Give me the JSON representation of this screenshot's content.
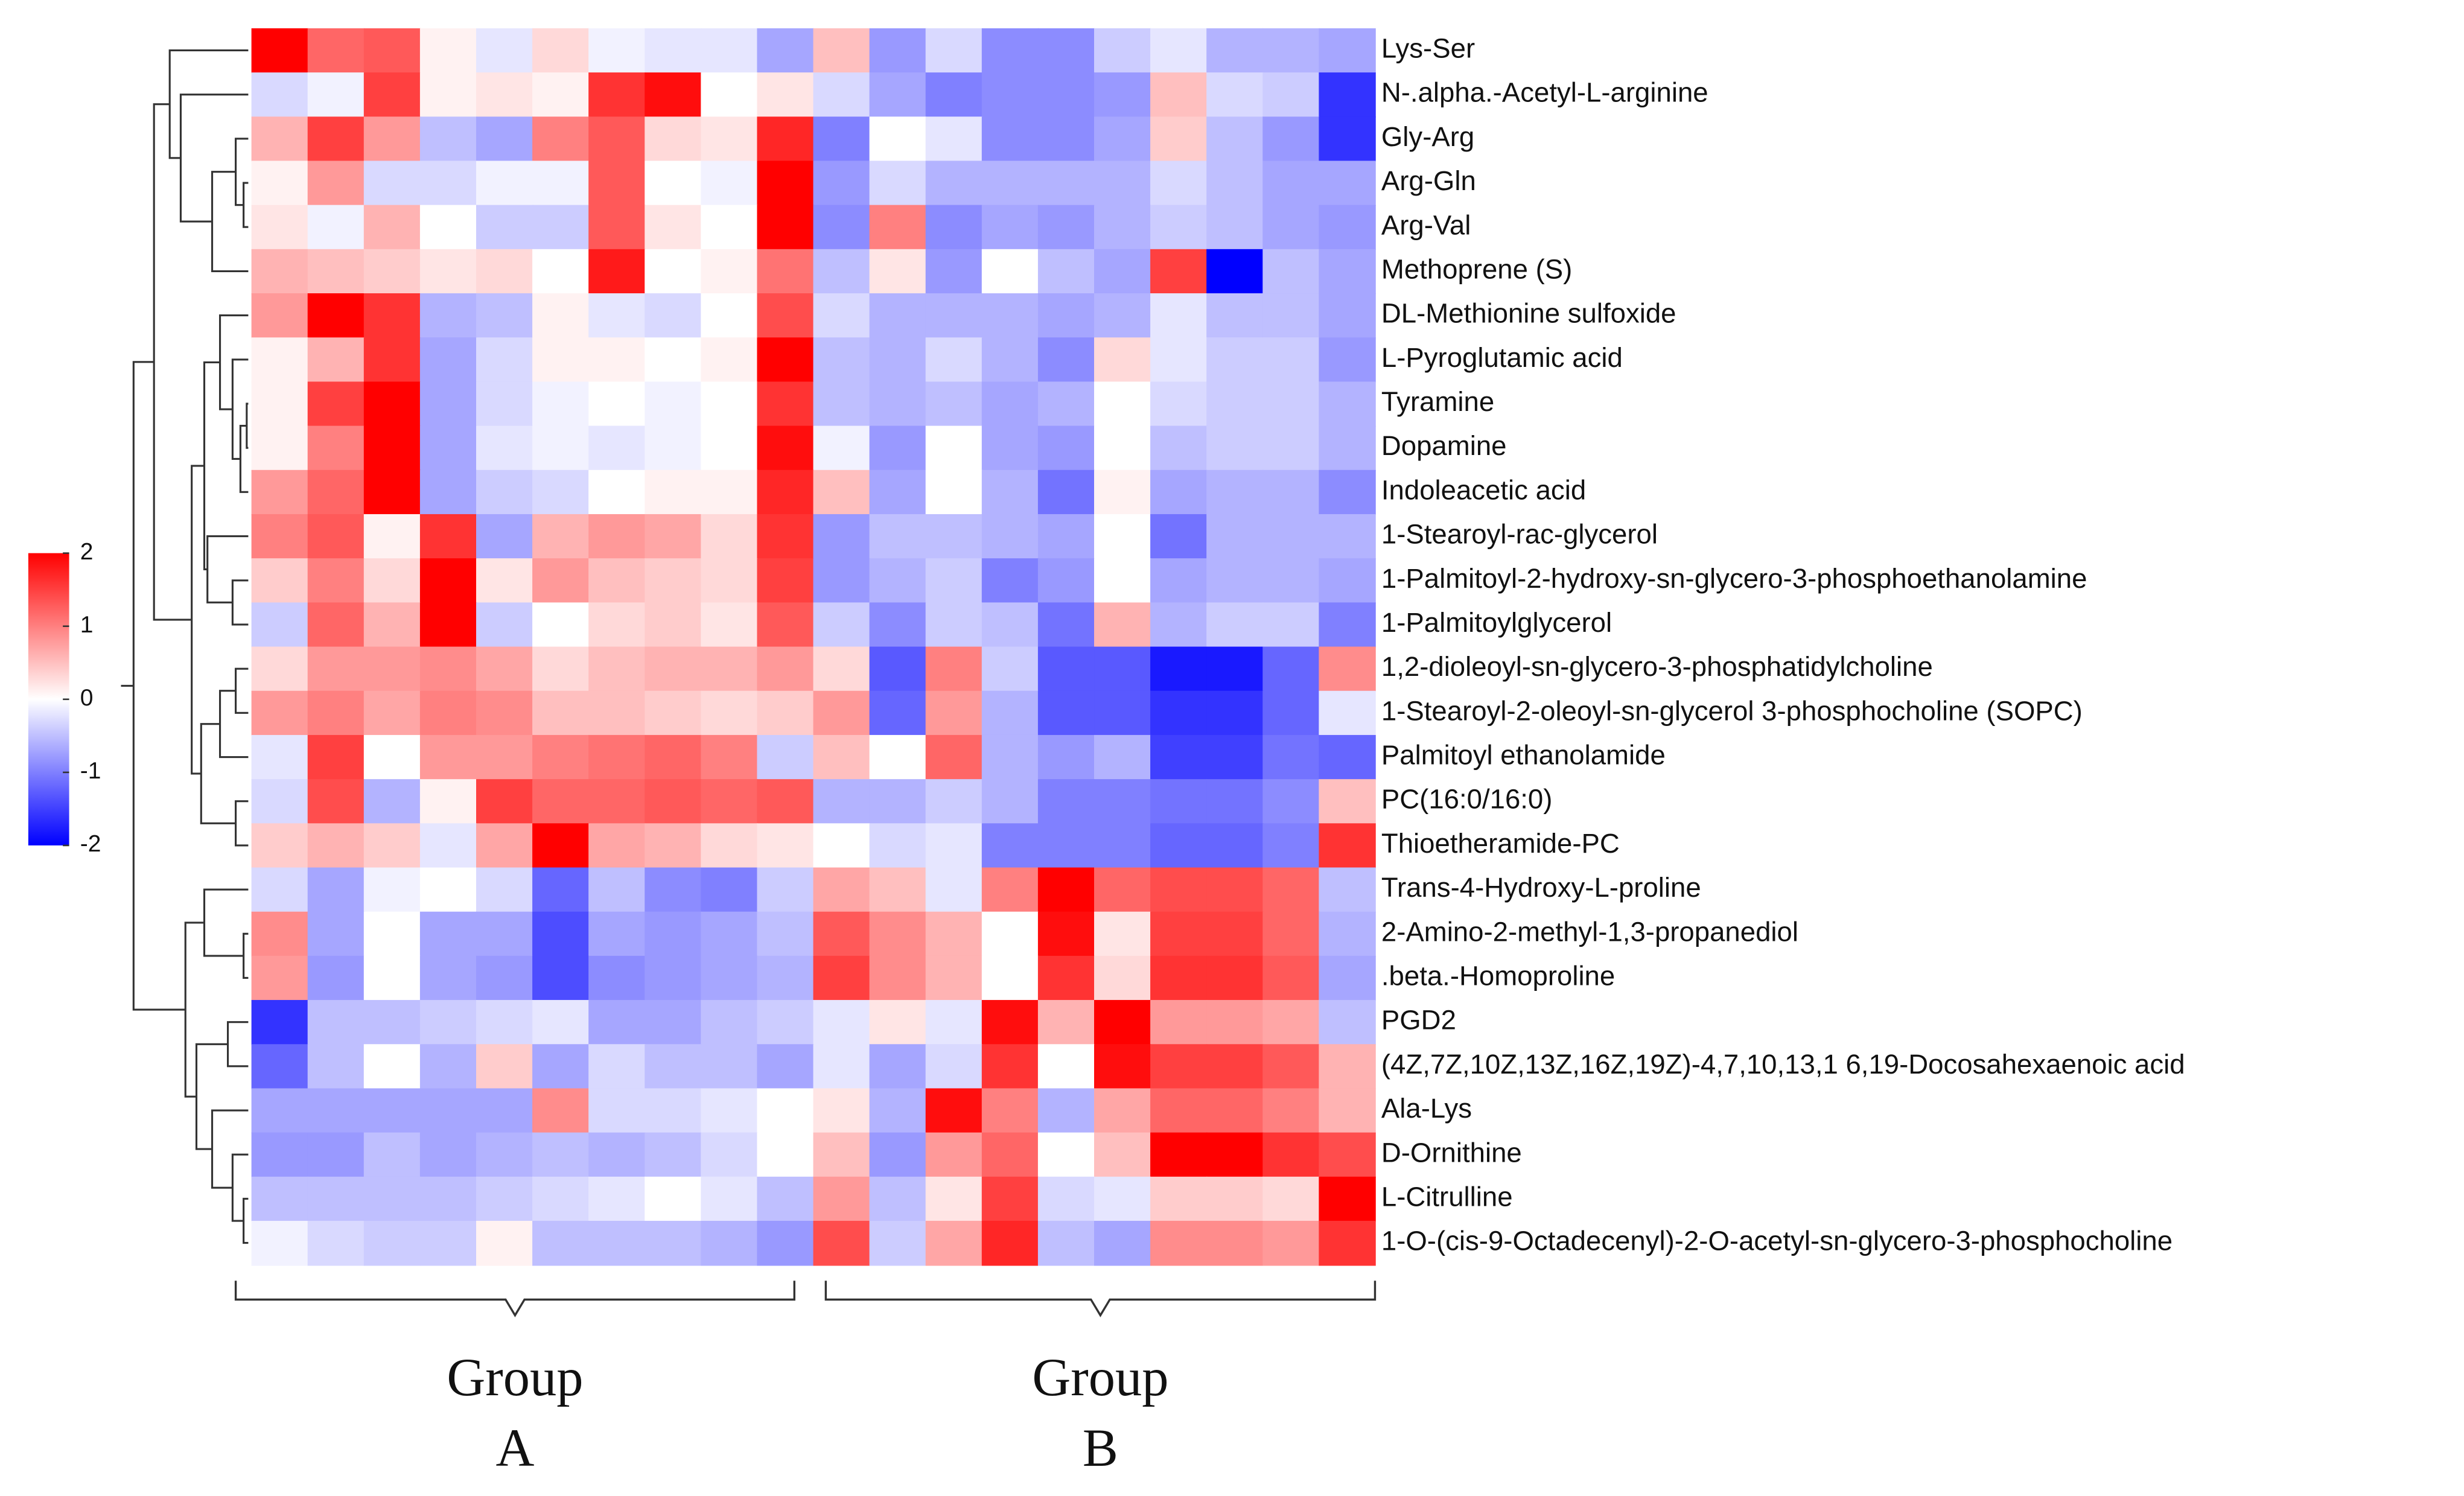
{
  "chart_data": {
    "type": "heatmap",
    "rows": [
      "Lys-Ser",
      "N-.alpha.-Acetyl-L-arginine",
      "Gly-Arg",
      "Arg-Gln",
      "Arg-Val",
      "Methoprene (S)",
      "DL-Methionine sulfoxide",
      "L-Pyroglutamic acid",
      "Tyramine",
      "Dopamine",
      "Indoleacetic acid",
      "1-Stearoyl-rac-glycerol",
      "1-Palmitoyl-2-hydroxy-sn-glycero-3-phosphoethanolamine",
      "1-Palmitoylglycerol",
      "1,2-dioleoyl-sn-glycero-3-phosphatidylcholine",
      "1-Stearoyl-2-oleoyl-sn-glycerol 3-phosphocholine (SOPC)",
      "Palmitoyl ethanolamide",
      "PC(16:0/16:0)",
      "Thioetheramide-PC",
      "Trans-4-Hydroxy-L-proline",
      "2-Amino-2-methyl-1,3-propanediol",
      ".beta.-Homoproline",
      "PGD2",
      "(4Z,7Z,10Z,13Z,16Z,19Z)-4,7,10,13,1 6,19-Docosahexaenoic acid",
      "Ala-Lys",
      "D-Ornithine",
      "L-Citrulline",
      "1-O-(cis-9-Octadecenyl)-2-O-acetyl-sn-glycero-3-phosphocholine"
    ],
    "groups": [
      {
        "line1": "Group",
        "line2": "A"
      },
      {
        "line1": "Group",
        "line2": "B"
      }
    ],
    "values": [
      [
        2,
        1.2,
        1.3,
        0.1,
        -0.2,
        0.3,
        -0.1,
        -0.2,
        -0.2,
        -0.7,
        0.5,
        -0.8,
        -0.3,
        -0.9,
        -0.9,
        -0.4,
        -0.2,
        -0.6,
        -0.6,
        -0.7
      ],
      [
        -0.3,
        -0.1,
        1.5,
        0.1,
        0.2,
        0.1,
        1.6,
        1.9,
        0,
        0.2,
        -0.3,
        -0.7,
        -1,
        -0.9,
        -0.9,
        -0.8,
        0.5,
        -0.3,
        -0.4,
        -1.6
      ],
      [
        0.6,
        1.5,
        0.8,
        -0.5,
        -0.7,
        1,
        1.3,
        0.3,
        0.2,
        1.7,
        -1,
        0,
        -0.2,
        -0.9,
        -0.9,
        -0.7,
        0.4,
        -0.5,
        -0.8,
        -1.6
      ],
      [
        0.1,
        0.8,
        -0.3,
        -0.3,
        -0.1,
        -0.1,
        1.3,
        0,
        -0.1,
        2,
        -0.8,
        -0.3,
        -0.6,
        -0.6,
        -0.6,
        -0.6,
        -0.3,
        -0.5,
        -0.7,
        -0.7
      ],
      [
        0.2,
        -0.1,
        0.6,
        0,
        -0.4,
        -0.4,
        1.3,
        0.2,
        0,
        2,
        -0.9,
        1,
        -0.9,
        -0.7,
        -0.8,
        -0.6,
        -0.4,
        -0.5,
        -0.7,
        -0.8
      ],
      [
        0.6,
        0.5,
        0.4,
        0.2,
        0.3,
        0,
        1.8,
        0,
        0.1,
        1.1,
        -0.5,
        0.2,
        -0.8,
        0,
        -0.5,
        -0.7,
        1.5,
        -2,
        -0.5,
        -0.7
      ],
      [
        0.8,
        2,
        1.6,
        -0.6,
        -0.5,
        0.1,
        -0.2,
        -0.3,
        0,
        1.4,
        -0.3,
        -0.6,
        -0.6,
        -0.6,
        -0.7,
        -0.6,
        -0.2,
        -0.5,
        -0.5,
        -0.7
      ],
      [
        0.1,
        0.6,
        1.6,
        -0.7,
        -0.3,
        0.1,
        0.1,
        0,
        0.1,
        2,
        -0.5,
        -0.6,
        -0.3,
        -0.6,
        -0.9,
        0.3,
        -0.2,
        -0.4,
        -0.4,
        -0.8
      ],
      [
        0.1,
        1.5,
        2,
        -0.7,
        -0.3,
        -0.1,
        0,
        -0.1,
        0,
        1.6,
        -0.5,
        -0.6,
        -0.5,
        -0.7,
        -0.6,
        0,
        -0.3,
        -0.4,
        -0.4,
        -0.6
      ],
      [
        0.1,
        1,
        2,
        -0.7,
        -0.2,
        -0.1,
        -0.2,
        -0.1,
        0,
        1.9,
        -0.1,
        -0.8,
        0,
        -0.7,
        -0.8,
        0,
        -0.5,
        -0.4,
        -0.4,
        -0.6
      ],
      [
        0.8,
        1.2,
        2,
        -0.7,
        -0.4,
        -0.3,
        0,
        0.1,
        0.1,
        1.7,
        0.5,
        -0.7,
        0,
        -0.6,
        -1.1,
        0.1,
        -0.7,
        -0.6,
        -0.6,
        -0.9
      ],
      [
        1,
        1.3,
        0.1,
        1.6,
        -0.7,
        0.6,
        0.8,
        0.7,
        0.3,
        1.6,
        -0.8,
        -0.5,
        -0.5,
        -0.6,
        -0.7,
        0,
        -1.1,
        -0.6,
        -0.6,
        -0.6
      ],
      [
        0.4,
        1,
        0.3,
        2,
        0.2,
        0.8,
        0.5,
        0.4,
        0.3,
        1.5,
        -0.8,
        -0.6,
        -0.4,
        -1,
        -0.8,
        0,
        -0.7,
        -0.6,
        -0.6,
        -0.7
      ],
      [
        -0.4,
        1.2,
        0.6,
        2,
        -0.4,
        0,
        0.3,
        0.4,
        0.2,
        1.3,
        -0.4,
        -0.9,
        -0.4,
        -0.5,
        -1.1,
        0.6,
        -0.6,
        -0.4,
        -0.4,
        -1
      ],
      [
        0.3,
        0.8,
        0.8,
        0.9,
        0.7,
        0.3,
        0.5,
        0.6,
        0.6,
        0.8,
        0.3,
        -1.3,
        1,
        -0.4,
        -1.3,
        -1.3,
        -1.8,
        -1.8,
        -1.2,
        0.9
      ],
      [
        0.8,
        1,
        0.7,
        1,
        0.9,
        0.5,
        0.5,
        0.4,
        0.3,
        0.4,
        0.8,
        -1.2,
        0.8,
        -0.6,
        -1.3,
        -1.3,
        -1.6,
        -1.6,
        -1.2,
        -0.2
      ],
      [
        -0.2,
        1.5,
        0,
        0.8,
        0.8,
        1,
        1.1,
        1.2,
        1,
        -0.4,
        0.5,
        0,
        1.2,
        -0.6,
        -0.8,
        -0.6,
        -1.5,
        -1.5,
        -1.1,
        -1.2
      ],
      [
        -0.3,
        1.4,
        -0.6,
        0.1,
        1.5,
        1.2,
        1.2,
        1.3,
        1.2,
        1.3,
        -0.6,
        -0.6,
        -0.4,
        -0.6,
        -1,
        -1,
        -1.1,
        -1.1,
        -0.9,
        0.5
      ],
      [
        0.4,
        0.6,
        0.4,
        -0.2,
        0.7,
        2,
        0.7,
        0.6,
        0.3,
        0.2,
        0,
        -0.3,
        -0.2,
        -1,
        -1,
        -1,
        -1.2,
        -1.2,
        -1,
        1.6
      ],
      [
        -0.3,
        -0.7,
        -0.1,
        0,
        -0.3,
        -1.2,
        -0.5,
        -0.9,
        -1,
        -0.4,
        0.7,
        0.5,
        -0.2,
        1,
        2,
        1.2,
        1.4,
        1.4,
        1.2,
        -0.5
      ],
      [
        0.9,
        -0.7,
        0,
        -0.7,
        -0.7,
        -1.4,
        -0.7,
        -0.8,
        -0.7,
        -0.5,
        1.3,
        0.9,
        0.6,
        0,
        1.9,
        0.2,
        1.5,
        1.5,
        1.2,
        -0.6
      ],
      [
        0.8,
        -0.8,
        0,
        -0.7,
        -0.8,
        -1.4,
        -0.9,
        -0.8,
        -0.7,
        -0.6,
        1.5,
        0.9,
        0.6,
        0,
        1.6,
        0.3,
        1.6,
        1.6,
        1.3,
        -0.7
      ],
      [
        -1.6,
        -0.5,
        -0.5,
        -0.4,
        -0.3,
        -0.2,
        -0.7,
        -0.7,
        -0.5,
        -0.4,
        -0.2,
        0.2,
        -0.2,
        1.9,
        0.6,
        2,
        0.8,
        0.8,
        0.7,
        -0.5
      ],
      [
        -1.2,
        -0.5,
        0,
        -0.6,
        0.4,
        -0.7,
        -0.3,
        -0.5,
        -0.5,
        -0.7,
        -0.2,
        -0.7,
        -0.3,
        1.6,
        0,
        1.9,
        1.5,
        1.5,
        1.3,
        0.6
      ],
      [
        -0.7,
        -0.7,
        -0.7,
        -0.7,
        -0.7,
        0.9,
        -0.3,
        -0.3,
        -0.2,
        0,
        0.2,
        -0.6,
        1.9,
        1,
        -0.6,
        0.7,
        1.2,
        1.2,
        1,
        0.6
      ],
      [
        -0.8,
        -0.8,
        -0.5,
        -0.7,
        -0.6,
        -0.5,
        -0.6,
        -0.5,
        -0.3,
        0,
        0.5,
        -0.8,
        0.8,
        1.2,
        0,
        0.5,
        2,
        2,
        1.6,
        1.4
      ],
      [
        -0.5,
        -0.5,
        -0.5,
        -0.5,
        -0.4,
        -0.3,
        -0.2,
        0,
        -0.2,
        -0.5,
        0.8,
        -0.5,
        0.2,
        1.5,
        -0.3,
        -0.2,
        0.4,
        0.4,
        0.3,
        2
      ],
      [
        -0.1,
        -0.3,
        -0.4,
        -0.4,
        0.1,
        -0.5,
        -0.5,
        -0.5,
        -0.6,
        -0.8,
        1.4,
        -0.4,
        0.7,
        1.7,
        -0.5,
        -0.7,
        0.9,
        0.9,
        0.8,
        1.6
      ]
    ],
    "zlim": [
      -2,
      2
    ],
    "zticks": [
      2,
      1,
      0,
      -1,
      -2
    ],
    "colors": [
      "#0000ff",
      "#ffffff",
      "#ff0000"
    ]
  }
}
